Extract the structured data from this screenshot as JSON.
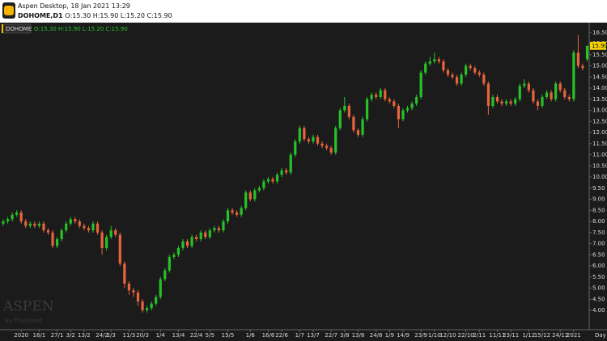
{
  "header": {
    "app_title": "Aspen Desktop, 18 Jan 2021 13:29",
    "symbol_period": "DOHOME,D1"
  },
  "chart_data": {
    "type": "candlestick",
    "symbol": "DOHOME",
    "ohlc_label": "O:15.30 H:15.90 L:15.20 C:15.90",
    "x_label": "Day",
    "watermark": "ASPEN",
    "watermark_sub": "by ThaiQuest",
    "last_price": {
      "value": 15.9,
      "label": "15.90"
    },
    "up_color": "#27c227",
    "down_color": "#e8643c",
    "categories": [
      null,
      null,
      null,
      null,
      "2020",
      null,
      null,
      null,
      "16/1",
      null,
      null,
      null,
      "27/1",
      null,
      null,
      "3/2",
      null,
      null,
      "13/2",
      null,
      null,
      null,
      "24/2",
      null,
      "2/3",
      null,
      null,
      null,
      "11/3",
      null,
      null,
      "20/3",
      null,
      null,
      null,
      "1/4",
      null,
      null,
      null,
      "13/4",
      null,
      null,
      null,
      "22/4",
      null,
      null,
      "5/5",
      null,
      null,
      null,
      "15/5",
      null,
      null,
      null,
      null,
      "1/6",
      null,
      null,
      null,
      "16/6",
      null,
      null,
      "22/6",
      null,
      null,
      null,
      "1/7",
      null,
      null,
      "13/7",
      null,
      null,
      null,
      "22/7",
      null,
      null,
      "3/8",
      null,
      null,
      "13/8",
      null,
      null,
      null,
      "24/8",
      null,
      null,
      "1/9",
      null,
      null,
      "14/9",
      null,
      null,
      null,
      "23/9",
      null,
      null,
      "1/10",
      null,
      null,
      "12/10",
      null,
      null,
      null,
      "22/10",
      null,
      null,
      "2/11",
      null,
      null,
      null,
      "11/11",
      null,
      null,
      "23/11",
      null,
      null,
      null,
      "1/12",
      null,
      null,
      "15/12",
      null,
      null,
      null,
      "24/12",
      null,
      null,
      "2021",
      null,
      null,
      null
    ],
    "open": [
      7.9,
      8.0,
      8.1,
      8.3,
      8.4,
      8.0,
      7.8,
      7.9,
      7.8,
      7.9,
      7.6,
      7.5,
      6.9,
      7.2,
      7.6,
      7.9,
      8.1,
      8.0,
      7.8,
      7.7,
      7.6,
      7.9,
      7.5,
      6.8,
      7.3,
      7.6,
      7.4,
      6.1,
      5.2,
      4.9,
      4.8,
      4.4,
      4.0,
      4.1,
      4.3,
      4.6,
      5.4,
      5.8,
      6.4,
      6.5,
      6.8,
      7.1,
      6.9,
      7.3,
      7.2,
      7.5,
      7.3,
      7.6,
      7.7,
      7.6,
      8.0,
      8.5,
      8.4,
      8.3,
      8.6,
      9.3,
      9.0,
      9.4,
      9.5,
      9.8,
      9.9,
      9.8,
      10.1,
      10.3,
      10.2,
      11.0,
      11.6,
      12.2,
      11.7,
      11.6,
      11.8,
      11.5,
      11.4,
      11.3,
      11.1,
      12.2,
      13.0,
      13.2,
      12.7,
      12.1,
      11.9,
      12.6,
      13.5,
      13.7,
      13.6,
      13.9,
      13.5,
      13.4,
      13.2,
      12.6,
      13.0,
      13.1,
      13.3,
      13.6,
      14.7,
      15.1,
      15.2,
      15.3,
      15.2,
      14.8,
      14.6,
      14.5,
      14.2,
      14.6,
      15.0,
      14.9,
      14.7,
      14.6,
      14.2,
      13.2,
      13.6,
      13.4,
      13.3,
      13.4,
      13.3,
      13.5,
      14.1,
      14.2,
      13.9,
      13.4,
      13.2,
      13.6,
      13.8,
      13.5,
      14.2,
      13.9,
      13.6,
      13.5,
      15.6,
      15.0,
      15.3
    ],
    "high": [
      8.1,
      8.2,
      8.4,
      8.5,
      8.5,
      8.1,
      8.0,
      8.0,
      8.0,
      8.0,
      7.7,
      7.6,
      7.3,
      7.7,
      8.0,
      8.2,
      8.2,
      8.1,
      7.9,
      7.8,
      8.0,
      8.0,
      7.6,
      7.4,
      7.8,
      7.7,
      7.5,
      6.2,
      5.3,
      5.0,
      4.9,
      4.5,
      4.2,
      4.4,
      4.7,
      5.5,
      5.9,
      6.5,
      6.6,
      6.9,
      7.2,
      7.2,
      7.4,
      7.4,
      7.6,
      7.6,
      7.7,
      7.8,
      7.8,
      8.1,
      8.6,
      8.6,
      8.5,
      8.7,
      9.4,
      9.4,
      9.5,
      9.6,
      9.9,
      10.0,
      10.0,
      10.2,
      10.4,
      10.4,
      11.1,
      11.7,
      12.3,
      12.3,
      11.8,
      11.9,
      11.9,
      11.6,
      11.5,
      11.4,
      12.3,
      13.1,
      13.6,
      13.3,
      12.8,
      12.2,
      12.7,
      13.6,
      13.8,
      13.8,
      14.0,
      14.0,
      13.6,
      13.5,
      13.3,
      13.1,
      13.2,
      13.4,
      13.7,
      14.8,
      15.2,
      15.4,
      15.6,
      15.4,
      15.3,
      14.9,
      14.7,
      14.6,
      14.7,
      15.1,
      15.1,
      15.0,
      14.8,
      14.7,
      14.3,
      13.7,
      13.7,
      13.5,
      13.5,
      13.5,
      13.6,
      14.2,
      14.4,
      14.3,
      14.0,
      13.5,
      13.7,
      13.9,
      13.9,
      14.3,
      14.3,
      14.0,
      13.7,
      15.7,
      16.4,
      15.1,
      15.9
    ],
    "low": [
      7.8,
      7.9,
      8.0,
      8.2,
      7.9,
      7.7,
      7.7,
      7.7,
      7.7,
      7.5,
      7.4,
      6.8,
      6.8,
      7.1,
      7.5,
      7.8,
      7.9,
      7.7,
      7.6,
      7.5,
      7.5,
      7.4,
      6.5,
      6.7,
      7.2,
      7.3,
      6.0,
      5.0,
      4.7,
      4.6,
      4.2,
      3.9,
      3.9,
      4.0,
      4.2,
      4.5,
      5.3,
      5.7,
      6.3,
      6.4,
      6.7,
      6.8,
      6.8,
      7.1,
      7.1,
      7.2,
      7.2,
      7.5,
      7.5,
      7.5,
      7.9,
      8.3,
      8.2,
      8.2,
      8.5,
      8.9,
      8.9,
      9.3,
      9.4,
      9.7,
      9.7,
      9.7,
      10.0,
      10.1,
      10.1,
      10.9,
      11.5,
      11.6,
      11.5,
      11.5,
      11.4,
      11.3,
      11.2,
      11.0,
      11.0,
      12.1,
      12.9,
      12.6,
      12.0,
      11.8,
      11.8,
      12.5,
      13.4,
      13.5,
      13.5,
      13.4,
      13.3,
      13.1,
      12.2,
      12.5,
      12.9,
      13.0,
      13.2,
      13.5,
      14.6,
      15.0,
      15.1,
      15.1,
      14.7,
      14.5,
      14.4,
      14.1,
      14.1,
      14.5,
      14.8,
      14.6,
      14.5,
      14.1,
      12.8,
      13.1,
      13.3,
      13.2,
      13.2,
      13.2,
      13.2,
      13.4,
      14.0,
      13.8,
      13.3,
      13.0,
      13.1,
      13.5,
      13.4,
      13.4,
      13.8,
      13.5,
      13.4,
      13.4,
      14.9,
      14.8,
      15.2
    ],
    "close": [
      8.0,
      8.1,
      8.3,
      8.4,
      8.0,
      7.8,
      7.9,
      7.8,
      7.9,
      7.6,
      7.5,
      6.9,
      7.2,
      7.6,
      7.9,
      8.1,
      8.0,
      7.8,
      7.7,
      7.6,
      7.9,
      7.5,
      6.8,
      7.3,
      7.6,
      7.4,
      6.1,
      5.2,
      4.9,
      4.8,
      4.4,
      4.0,
      4.1,
      4.3,
      4.6,
      5.4,
      5.8,
      6.4,
      6.5,
      6.8,
      7.1,
      6.9,
      7.3,
      7.2,
      7.5,
      7.3,
      7.6,
      7.7,
      7.6,
      8.0,
      8.5,
      8.4,
      8.3,
      8.6,
      9.3,
      9.0,
      9.4,
      9.5,
      9.8,
      9.9,
      9.8,
      10.1,
      10.3,
      10.2,
      11.0,
      11.6,
      12.2,
      11.7,
      11.6,
      11.8,
      11.5,
      11.4,
      11.3,
      11.1,
      12.2,
      13.0,
      13.2,
      12.7,
      12.1,
      11.9,
      12.6,
      13.5,
      13.7,
      13.6,
      13.9,
      13.5,
      13.4,
      13.2,
      12.6,
      13.0,
      13.1,
      13.3,
      13.6,
      14.7,
      15.1,
      15.2,
      15.3,
      15.2,
      14.8,
      14.6,
      14.5,
      14.2,
      14.6,
      15.0,
      14.9,
      14.7,
      14.6,
      14.2,
      13.2,
      13.6,
      13.4,
      13.3,
      13.4,
      13.3,
      13.5,
      14.1,
      14.2,
      13.9,
      13.4,
      13.2,
      13.6,
      13.8,
      13.5,
      14.2,
      13.9,
      13.6,
      13.5,
      15.6,
      15.0,
      14.9,
      15.9
    ],
    "ylim": [
      3.6,
      16.8
    ],
    "yticks": [
      {
        "value": 4,
        "label": "4.00"
      },
      {
        "value": 4.5,
        "label": "4.50"
      },
      {
        "value": 5,
        "label": "5.00"
      },
      {
        "value": 5.5,
        "label": "5.50"
      },
      {
        "value": 6,
        "label": "6.00"
      },
      {
        "value": 6.5,
        "label": "6.50"
      },
      {
        "value": 7,
        "label": "7.00"
      },
      {
        "value": 7.5,
        "label": "7.50"
      },
      {
        "value": 8,
        "label": "8.00"
      },
      {
        "value": 8.5,
        "label": "8.50"
      },
      {
        "value": 9,
        "label": "9.00"
      },
      {
        "value": 9.5,
        "label": "9.50"
      },
      {
        "value": 10,
        "label": "10.00"
      },
      {
        "value": 10.5,
        "label": "10.50"
      },
      {
        "value": 11,
        "label": "11.00"
      },
      {
        "value": 11.5,
        "label": "11.50"
      },
      {
        "value": 12,
        "label": "12.00"
      },
      {
        "value": 12.5,
        "label": "12.50"
      },
      {
        "value": 13,
        "label": "13.00"
      },
      {
        "value": 13.5,
        "label": "13.50"
      },
      {
        "value": 14,
        "label": "14.00"
      },
      {
        "value": 14.5,
        "label": "14.50"
      },
      {
        "value": 15,
        "label": "15.00"
      },
      {
        "value": 15.5,
        "label": "15.50"
      },
      {
        "value": 16,
        "label": "16.00"
      },
      {
        "value": 16.5,
        "label": "16.50"
      }
    ]
  }
}
